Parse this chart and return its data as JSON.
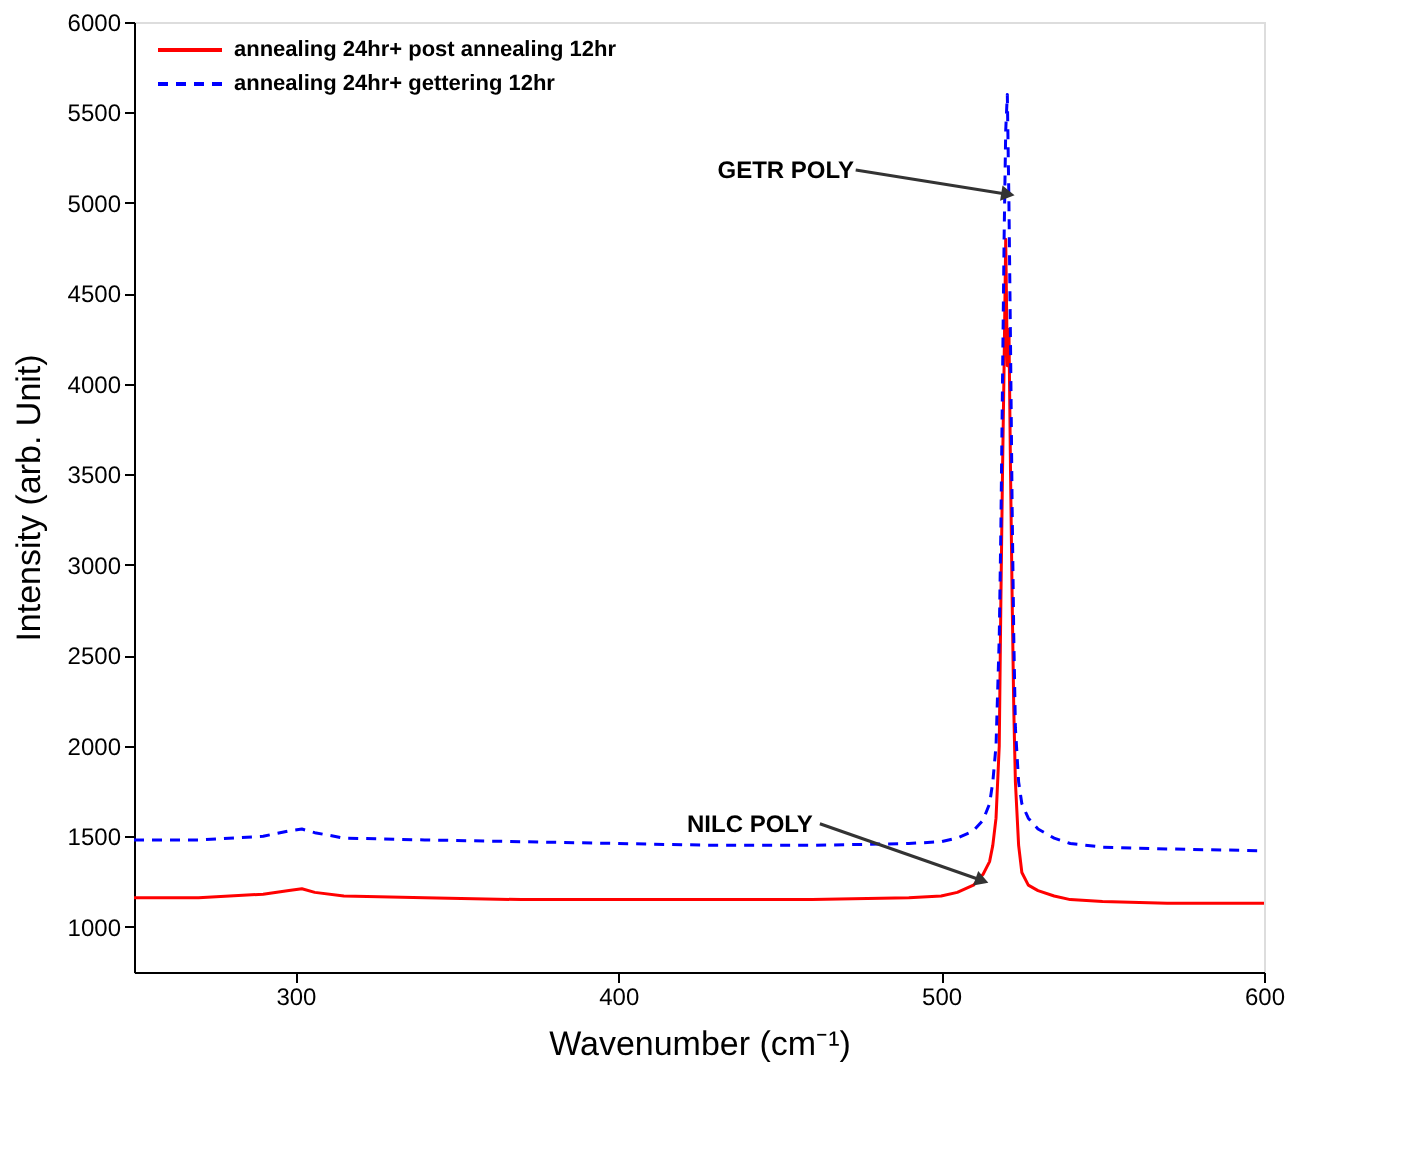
{
  "chart_data": {
    "type": "line",
    "xlabel": "Wavenumber (cm⁻¹)",
    "ylabel": "Intensity (arb. Unit)",
    "xlim": [
      250,
      600
    ],
    "xticks": [
      300,
      400,
      500,
      600
    ],
    "ylim": [
      750,
      6000
    ],
    "yticks": [
      1000,
      1500,
      2000,
      2500,
      3000,
      3500,
      4000,
      4500,
      5000,
      5500,
      6000
    ],
    "legend": "top left",
    "grid": false,
    "series": [
      {
        "name": "annealing 24hr+ post annealing 12hr",
        "color": "#ff0000",
        "line_style": "solid",
        "x": [
          250,
          270,
          290,
          298,
          302,
          306,
          315,
          340,
          370,
          400,
          430,
          460,
          490,
          500,
          505,
          510,
          513,
          515,
          516,
          517,
          518,
          518.5,
          519,
          519.5,
          520,
          520.5,
          521,
          521.5,
          522,
          522.5,
          523,
          524,
          525,
          527,
          530,
          535,
          540,
          550,
          570,
          600
        ],
        "values": [
          1160,
          1160,
          1180,
          1200,
          1210,
          1190,
          1170,
          1160,
          1150,
          1150,
          1150,
          1150,
          1160,
          1170,
          1190,
          1230,
          1290,
          1360,
          1450,
          1600,
          2000,
          2800,
          3500,
          4100,
          4800,
          4100,
          4300,
          3500,
          2800,
          2200,
          1800,
          1450,
          1300,
          1230,
          1200,
          1170,
          1150,
          1140,
          1130,
          1130
        ]
      },
      {
        "name": "annealing 24hr+ gettering 12hr",
        "color": "#0000ff",
        "line_style": "dashed",
        "x": [
          250,
          270,
          290,
          298,
          302,
          306,
          315,
          340,
          370,
          400,
          430,
          460,
          490,
          500,
          505,
          510,
          513,
          515,
          516,
          517,
          518,
          518.5,
          519,
          519.5,
          520,
          520.5,
          521,
          521.5,
          522,
          522.5,
          523,
          524,
          525,
          527,
          530,
          535,
          540,
          550,
          570,
          600
        ],
        "values": [
          1480,
          1480,
          1500,
          1530,
          1540,
          1520,
          1490,
          1480,
          1470,
          1460,
          1450,
          1450,
          1460,
          1470,
          1490,
          1530,
          1590,
          1680,
          1800,
          2000,
          2600,
          3200,
          4000,
          4800,
          5400,
          5600,
          5000,
          4200,
          3300,
          2600,
          2100,
          1800,
          1680,
          1600,
          1540,
          1490,
          1460,
          1440,
          1430,
          1420
        ]
      }
    ],
    "annotations": [
      {
        "text": "GETR POLY",
        "x": 520,
        "y": 5050
      },
      {
        "text": "NILC POLY",
        "x": 512,
        "y": 1260
      }
    ]
  }
}
